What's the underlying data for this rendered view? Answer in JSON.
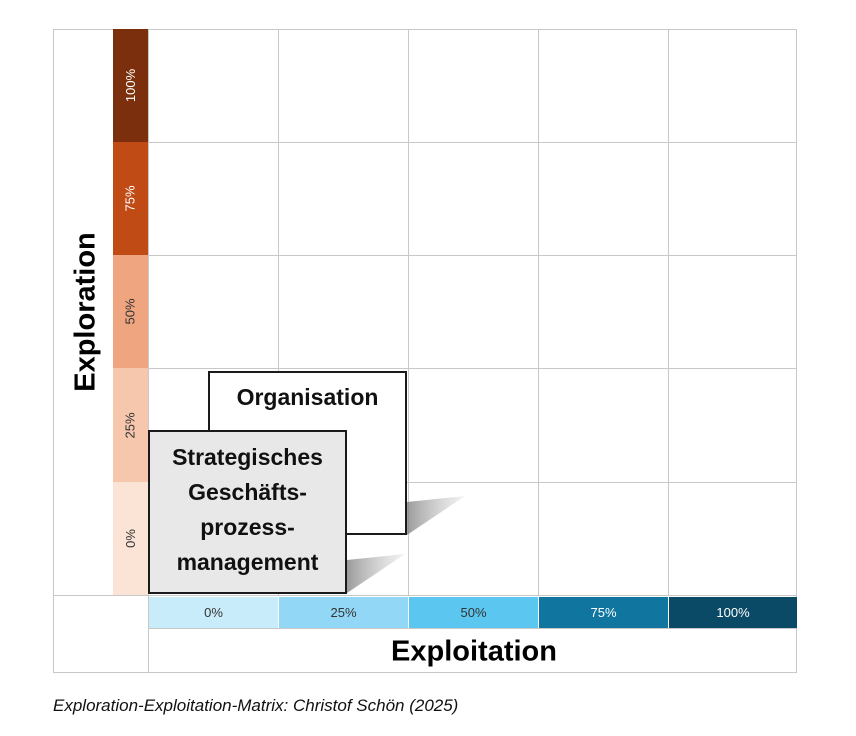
{
  "y_axis": {
    "label": "Exploration",
    "levels": [
      {
        "label": "100%",
        "color": "#7b2f0c",
        "text_color": "#ffffff"
      },
      {
        "label": "75%",
        "color": "#c04b15",
        "text_color": "#ffffff"
      },
      {
        "label": "50%",
        "color": "#efa57f",
        "text_color": "#333333"
      },
      {
        "label": "25%",
        "color": "#f6c7ad",
        "text_color": "#333333"
      },
      {
        "label": "0%",
        "color": "#fbe3d6",
        "text_color": "#333333"
      }
    ]
  },
  "x_axis": {
    "label": "Exploitation",
    "levels": [
      {
        "label": "0%",
        "color": "#c9ecfb",
        "text_color": "#333333"
      },
      {
        "label": "25%",
        "color": "#92d8f6",
        "text_color": "#333333"
      },
      {
        "label": "50%",
        "color": "#5bc6ef",
        "text_color": "#333333"
      },
      {
        "label": "75%",
        "color": "#10769f",
        "text_color": "#ffffff"
      },
      {
        "label": "100%",
        "color": "#0b4a66",
        "text_color": "#ffffff"
      }
    ]
  },
  "boxes": {
    "organisation": {
      "label": "Organisation"
    },
    "sgpm": {
      "lines": [
        "Strategisches",
        "Geschäfts-",
        "prozess-",
        "management"
      ]
    }
  },
  "caption": "Exploration-Exploitation-Matrix: Christof Schön (2025)"
}
